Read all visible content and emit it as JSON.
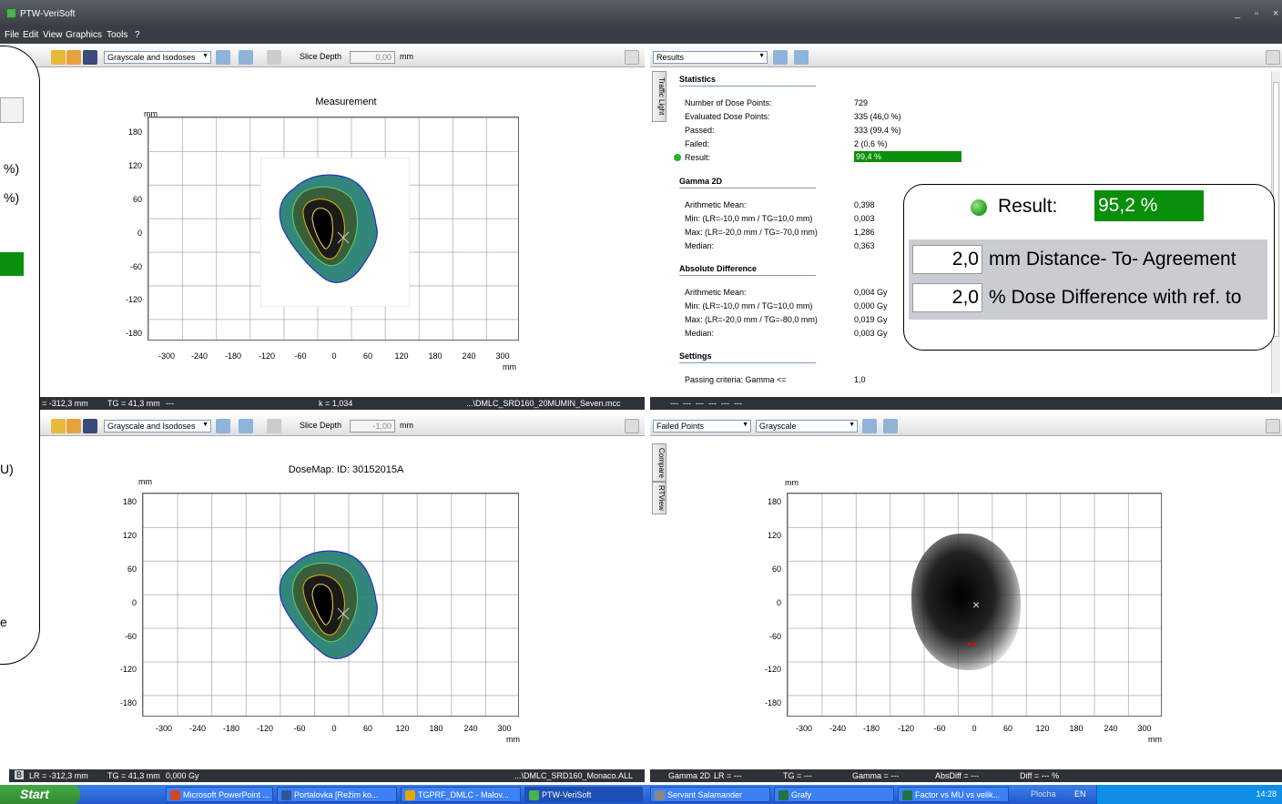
{
  "window": {
    "title": "PTW-VeriSoft"
  },
  "menu": [
    "File",
    "Edit",
    "View",
    "Graphics",
    "Tools",
    "?"
  ],
  "left_edge": {
    "texts": [
      "%)",
      "%)",
      "U)",
      "e"
    ]
  },
  "top_left": {
    "view_select": "Grayscale and Isodoses",
    "slice_depth_label": "Slice Depth",
    "slice_depth_value": "0,00",
    "slice_unit": "mm",
    "plot_title": "Measurement",
    "y_unit": "mm",
    "x_unit": "mm",
    "y_ticks": [
      "180",
      "120",
      "60",
      "0",
      "-60",
      "-120",
      "-180"
    ],
    "x_ticks": [
      "-300",
      "-240",
      "-180",
      "-120",
      "-60",
      "0",
      "60",
      "120",
      "180",
      "240",
      "300"
    ],
    "status": {
      "pane": "A",
      "lr": "LR = -312,3 mm",
      "tg": "TG = 41,3 mm",
      "dose": "---",
      "k": "k = 1,034",
      "file": "...\\DMLC_SRD160_20MUMIN_Seven.mcc"
    }
  },
  "bottom_left": {
    "view_select": "Grayscale and Isodoses",
    "slice_depth_label": "Slice Depth",
    "slice_depth_value": "-1,00",
    "slice_unit": "mm",
    "plot_title": "DoseMap: ID: 30152015A",
    "y_unit": "mm",
    "x_unit": "mm",
    "y_ticks": [
      "180",
      "120",
      "60",
      "0",
      "-60",
      "-120",
      "-180"
    ],
    "x_ticks": [
      "-300",
      "-240",
      "-180",
      "-120",
      "-60",
      "0",
      "60",
      "120",
      "180",
      "240",
      "300"
    ],
    "status": {
      "pane": "B",
      "lr": "LR = -312,3 mm",
      "tg": "TG = 41,3 mm",
      "dose": "0,000 Gy",
      "file": "...\\DMLC_SRD160_Monaco.ALL"
    }
  },
  "top_right": {
    "view_select": "Results",
    "side_tab": "Traffic Light",
    "statistics": {
      "heading": "Statistics",
      "rows": [
        {
          "label": "Number of Dose Points:",
          "value": "729"
        },
        {
          "label": "Evaluated Dose Points:",
          "value": "335 (46,0 %)"
        },
        {
          "label": "Passed:",
          "value": "333 (99,4 %)"
        },
        {
          "label": "Failed:",
          "value": "2 (0,6 %)"
        }
      ],
      "result_label": "Result:",
      "result_value": "99,4 %"
    },
    "gamma": {
      "heading": "Gamma 2D",
      "rows": [
        {
          "label": "Arithmetic Mean:",
          "value": "0,398"
        },
        {
          "label": "Min: (LR=-10,0 mm / TG=10,0 mm)",
          "value": "0,003"
        },
        {
          "label": "Max: (LR=-20,0 mm / TG=-70,0 mm)",
          "value": "1,286"
        },
        {
          "label": "Median:",
          "value": "0,363"
        }
      ]
    },
    "absdiff": {
      "heading": "Absolute Difference",
      "rows": [
        {
          "label": "Arithmetic Mean:",
          "value": "0,004 Gy"
        },
        {
          "label": "Min: (LR=-10,0 mm / TG=10,0 mm)",
          "value": "0,000 Gy"
        },
        {
          "label": "Max: (LR=-20,0 mm / TG=-80,0 mm)",
          "value": "0,019 Gy"
        },
        {
          "label": "Median:",
          "value": "0,003 Gy"
        }
      ]
    },
    "settings": {
      "heading": "Settings",
      "rows": [
        {
          "label": "Passing criteria: Gamma <=",
          "value": "1,0"
        }
      ]
    },
    "status": {
      "fields": [
        "---",
        "---",
        "---",
        "---",
        "---",
        "---"
      ]
    }
  },
  "callout": {
    "result_label": "Result:",
    "result_value": "95,2 %",
    "dta_value": "2,0",
    "dta_label": "mm Distance- To- Agreement",
    "dd_value": "2,0",
    "dd_label": "% Dose Difference with ref. to"
  },
  "bottom_right": {
    "view_select": "Failed Points",
    "scale_select": "Grayscale",
    "side_tabs": [
      "Compare",
      "RTView"
    ],
    "y_unit": "mm",
    "x_unit": "mm",
    "y_ticks": [
      "180",
      "120",
      "60",
      "0",
      "-60",
      "-120",
      "-180"
    ],
    "x_ticks": [
      "-300",
      "-240",
      "-180",
      "-120",
      "-60",
      "0",
      "60",
      "120",
      "180",
      "240",
      "300"
    ],
    "status": {
      "gamma": "Gamma 2D",
      "lr": "LR = ---",
      "tg": "TG = ---",
      "gval": "Gamma = ---",
      "abs": "AbsDiff = ---",
      "diff": "Diff = --- %"
    }
  },
  "taskbar": {
    "start": "Start",
    "items": [
      {
        "label": "Microsoft PowerPoint ...",
        "icon_color": "#d24726"
      },
      {
        "label": "Portalovka [Režim ko...",
        "icon_color": "#2b579a"
      },
      {
        "label": "TGPRF_DMLC - Malov...",
        "icon_color": "#e6a800"
      },
      {
        "label": "PTW-VeriSoft",
        "icon_color": "#4caf50"
      },
      {
        "label": "Servant Salamander",
        "icon_color": "#888888"
      },
      {
        "label": "Grafy",
        "icon_color": "#217346"
      },
      {
        "label": "Factor vs MU vs velik...",
        "icon_color": "#217346"
      }
    ],
    "desktop": "Plocha",
    "lang": "EN",
    "clock": "14:28"
  },
  "colors": {
    "result_green": "#0a8f0a",
    "status_bar": "#2d3138",
    "title_bar": "#3c4046"
  }
}
